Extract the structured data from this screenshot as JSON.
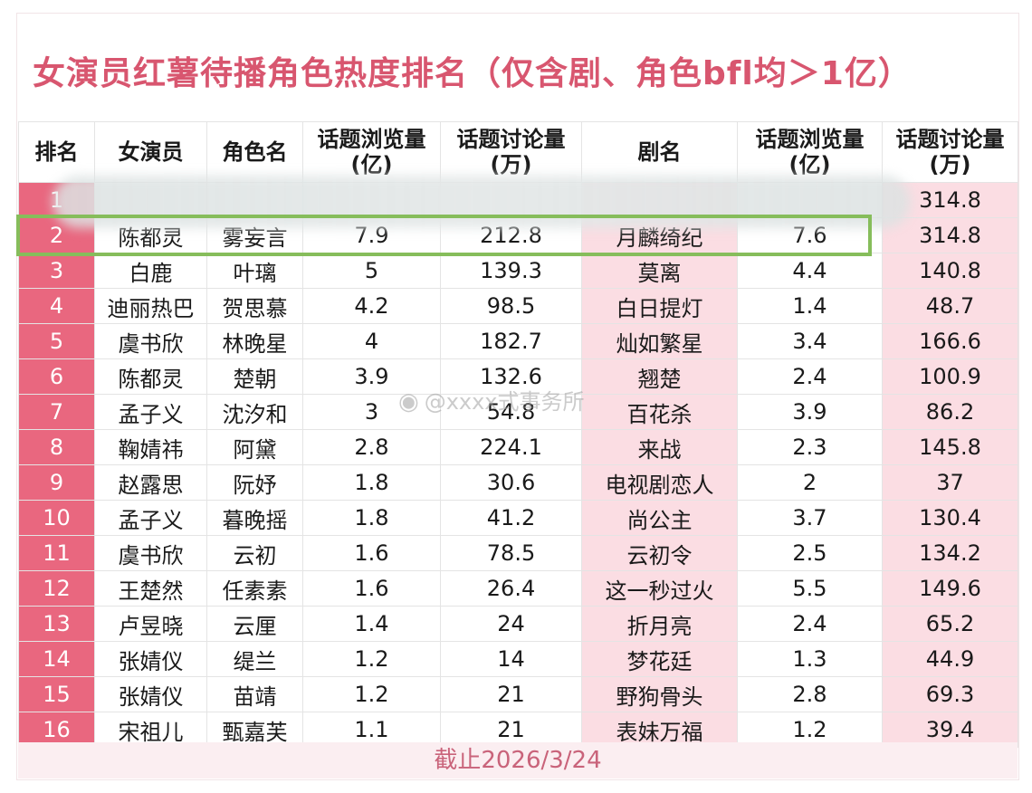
{
  "title": "女演员红薯待播角色热度排名（仅含剧、角色bfl均＞1亿）",
  "headers": {
    "rank": "排名",
    "actress": "女演员",
    "role": "角色名",
    "role_views": [
      "话题浏览量",
      "(亿)"
    ],
    "role_disc": [
      "话题讨论量",
      "(万)"
    ],
    "drama": "剧名",
    "drama_views": [
      "话题浏览量",
      "(亿)"
    ],
    "drama_disc": [
      "话题讨论量",
      "(万)"
    ]
  },
  "rows": [
    {
      "rank": "1",
      "actress": "",
      "role": "",
      "rv": "",
      "rd": "",
      "drama": "",
      "dv": "",
      "dd": "314.8"
    },
    {
      "rank": "2",
      "actress": "陈都灵",
      "role": "雾妄言",
      "rv": "7.9",
      "rd": "212.8",
      "drama": "月麟绮纪",
      "dv": "7.6",
      "dd": "314.8"
    },
    {
      "rank": "3",
      "actress": "白鹿",
      "role": "叶璃",
      "rv": "5",
      "rd": "139.3",
      "drama": "莫离",
      "dv": "4.4",
      "dd": "140.8"
    },
    {
      "rank": "4",
      "actress": "迪丽热巴",
      "role": "贺思慕",
      "rv": "4.2",
      "rd": "98.5",
      "drama": "白日提灯",
      "dv": "1.4",
      "dd": "48.7"
    },
    {
      "rank": "5",
      "actress": "虞书欣",
      "role": "林晚星",
      "rv": "4",
      "rd": "182.7",
      "drama": "灿如繁星",
      "dv": "3.4",
      "dd": "166.6"
    },
    {
      "rank": "6",
      "actress": "陈都灵",
      "role": "楚朝",
      "rv": "3.9",
      "rd": "132.6",
      "drama": "翘楚",
      "dv": "2.4",
      "dd": "100.9"
    },
    {
      "rank": "7",
      "actress": "孟子义",
      "role": "沈汐和",
      "rv": "3",
      "rd": "54.8",
      "drama": "百花杀",
      "dv": "3.9",
      "dd": "86.2"
    },
    {
      "rank": "8",
      "actress": "鞠婧祎",
      "role": "阿黛",
      "rv": "2.8",
      "rd": "224.1",
      "drama": "来战",
      "dv": "2.3",
      "dd": "145.8"
    },
    {
      "rank": "9",
      "actress": "赵露思",
      "role": "阮妤",
      "rv": "1.8",
      "rd": "30.6",
      "drama": "电视剧恋人",
      "dv": "2",
      "dd": "37"
    },
    {
      "rank": "10",
      "actress": "孟子义",
      "role": "暮晚摇",
      "rv": "1.8",
      "rd": "41.2",
      "drama": "尚公主",
      "dv": "3.7",
      "dd": "130.4"
    },
    {
      "rank": "11",
      "actress": "虞书欣",
      "role": "云初",
      "rv": "1.6",
      "rd": "78.5",
      "drama": "云初令",
      "dv": "2.5",
      "dd": "134.2"
    },
    {
      "rank": "12",
      "actress": "王楚然",
      "role": "任素素",
      "rv": "1.6",
      "rd": "26.4",
      "drama": "这一秒过火",
      "dv": "5.5",
      "dd": "149.6"
    },
    {
      "rank": "13",
      "actress": "卢昱晓",
      "role": "云厘",
      "rv": "1.4",
      "rd": "24",
      "drama": "折月亮",
      "dv": "2.4",
      "dd": "65.2"
    },
    {
      "rank": "14",
      "actress": "张婧仪",
      "role": "缇兰",
      "rv": "1.2",
      "rd": "14",
      "drama": "梦花廷",
      "dv": "1.3",
      "dd": "44.9"
    },
    {
      "rank": "15",
      "actress": "张婧仪",
      "role": "苗靖",
      "rv": "1.2",
      "rd": "21",
      "drama": "野狗骨头",
      "dv": "2.8",
      "dd": "69.3"
    },
    {
      "rank": "16",
      "actress": "宋祖儿",
      "role": "甄嘉芙",
      "rv": "1.1",
      "rd": "21",
      "drama": "表妹万福",
      "dv": "1.2",
      "dd": "39.4"
    }
  ],
  "watermark": "@xxxx式事务所",
  "footer": "截止2026/3/24",
  "colors": {
    "title": "#d8566f",
    "rank_cell": "#e9677f",
    "pink_cell": "#fbdde3",
    "highlight_border": "#86bd5b"
  }
}
